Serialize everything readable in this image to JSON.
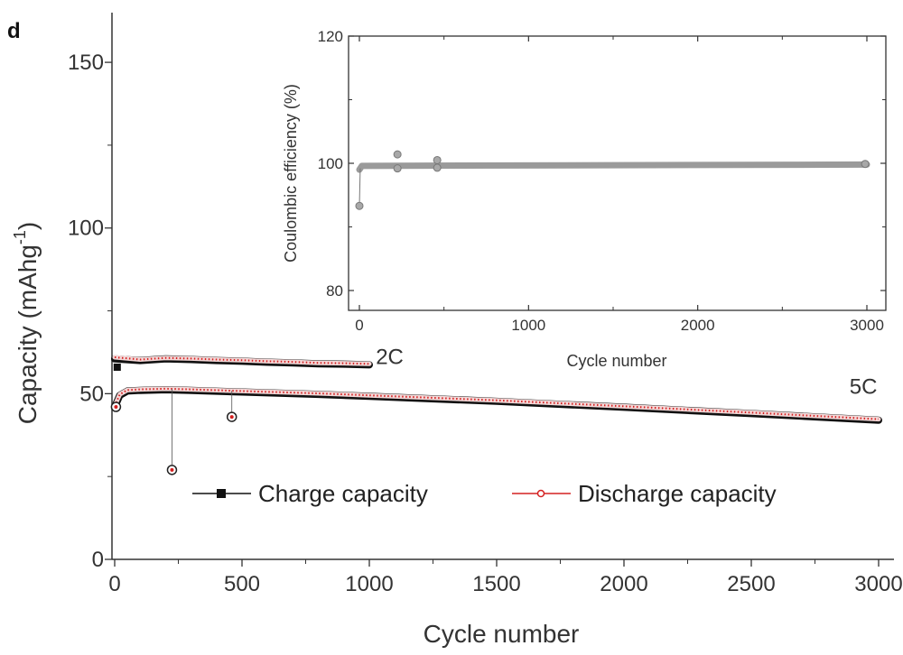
{
  "panel_label": "d",
  "chart_data": [
    {
      "type": "line",
      "xlabel": "Cycle number",
      "ylabel": "Capacity (mAhg",
      "ylabel_superscript": "-1",
      "ylabel_suffix": ")",
      "xlim": [
        0,
        3000
      ],
      "ylim": [
        0,
        165
      ],
      "x_ticks": [
        0,
        500,
        1000,
        1500,
        2000,
        2500,
        3000
      ],
      "x_tick_labels": [
        "0",
        "500",
        "1000",
        "1500",
        "2000",
        "2500",
        "3000"
      ],
      "y_ticks": [
        0,
        50,
        100,
        150
      ],
      "y_tick_labels": [
        "0",
        "50",
        "100",
        "150"
      ],
      "legend": {
        "placement": "lower-center",
        "entries": [
          {
            "label": "Charge capacity",
            "color": "#111111",
            "marker": "square"
          },
          {
            "label": "Discharge capacity",
            "color": "#d42020",
            "marker": "circle-open"
          }
        ]
      },
      "annotations": [
        {
          "text": "2C",
          "x": 1080,
          "y": 59
        },
        {
          "text": "5C",
          "x": 2940,
          "y": 50
        }
      ],
      "series": [
        {
          "name": "Charge capacity",
          "color": "#111111",
          "segments": [
            {
              "label": "2C",
              "x": [
                0,
                100,
                200,
                300,
                400,
                500,
                600,
                700,
                800,
                900,
                1000
              ],
              "y": [
                60.5,
                60.0,
                60.5,
                60.3,
                60.0,
                59.8,
                59.5,
                59.3,
                59.0,
                58.9,
                58.7
              ]
            },
            {
              "label": "5C",
              "x": [
                0,
                20,
                50,
                100,
                200,
                300,
                500,
                800,
                1000,
                1500,
                2000,
                2500,
                3000
              ],
              "y": [
                46,
                49.5,
                50.8,
                51.0,
                51.2,
                51.0,
                50.5,
                49.8,
                49.2,
                47.7,
                45.9,
                44.0,
                42.0
              ]
            }
          ],
          "points": [
            {
              "x": 10,
              "y": 58
            }
          ]
        },
        {
          "name": "Discharge capacity",
          "color": "#d42020",
          "segments": [
            {
              "label": "2C",
              "x": [
                0,
                100,
                200,
                300,
                400,
                500,
                600,
                700,
                800,
                900,
                1000
              ],
              "y": [
                61.0,
                60.3,
                60.8,
                60.6,
                60.3,
                60.1,
                59.8,
                59.6,
                59.3,
                59.2,
                59.0
              ]
            },
            {
              "label": "5C",
              "x": [
                0,
                20,
                50,
                100,
                200,
                300,
                500,
                800,
                1000,
                1500,
                2000,
                2500,
                3000
              ],
              "y": [
                46.3,
                49.8,
                51.1,
                51.3,
                51.5,
                51.3,
                50.8,
                50.1,
                49.5,
                48.0,
                46.2,
                44.3,
                42.3
              ]
            }
          ],
          "points": [
            {
              "x": 5,
              "y": 46
            },
            {
              "x": 225,
              "y": 27
            },
            {
              "x": 460,
              "y": 43
            }
          ]
        }
      ]
    },
    {
      "type": "scatter",
      "inset": true,
      "xlabel": "Cycle number",
      "ylabel": "Coulombic efficiency (%)",
      "xlim": [
        -20,
        3030
      ],
      "ylim": [
        70,
        120
      ],
      "x_ticks": [
        0,
        1000,
        2000,
        3000
      ],
      "x_tick_labels": [
        "0",
        "1000",
        "2000",
        "3000"
      ],
      "y_ticks": [
        80,
        100,
        120
      ],
      "y_tick_labels": [
        "80",
        "100",
        "120"
      ],
      "series": [
        {
          "name": "Coulombic efficiency",
          "color": "#9a9a9a",
          "baseline": {
            "x": [
              0,
              15,
              3000
            ],
            "y": [
              99.0,
              99.6,
              99.8
            ]
          },
          "points": [
            {
              "x": 0,
              "y": 93.3
            },
            {
              "x": 225,
              "y": 101.4
            },
            {
              "x": 225,
              "y": 99.2
            },
            {
              "x": 460,
              "y": 100.5
            },
            {
              "x": 460,
              "y": 99.3
            },
            {
              "x": 2990,
              "y": 99.9
            }
          ]
        }
      ]
    }
  ]
}
